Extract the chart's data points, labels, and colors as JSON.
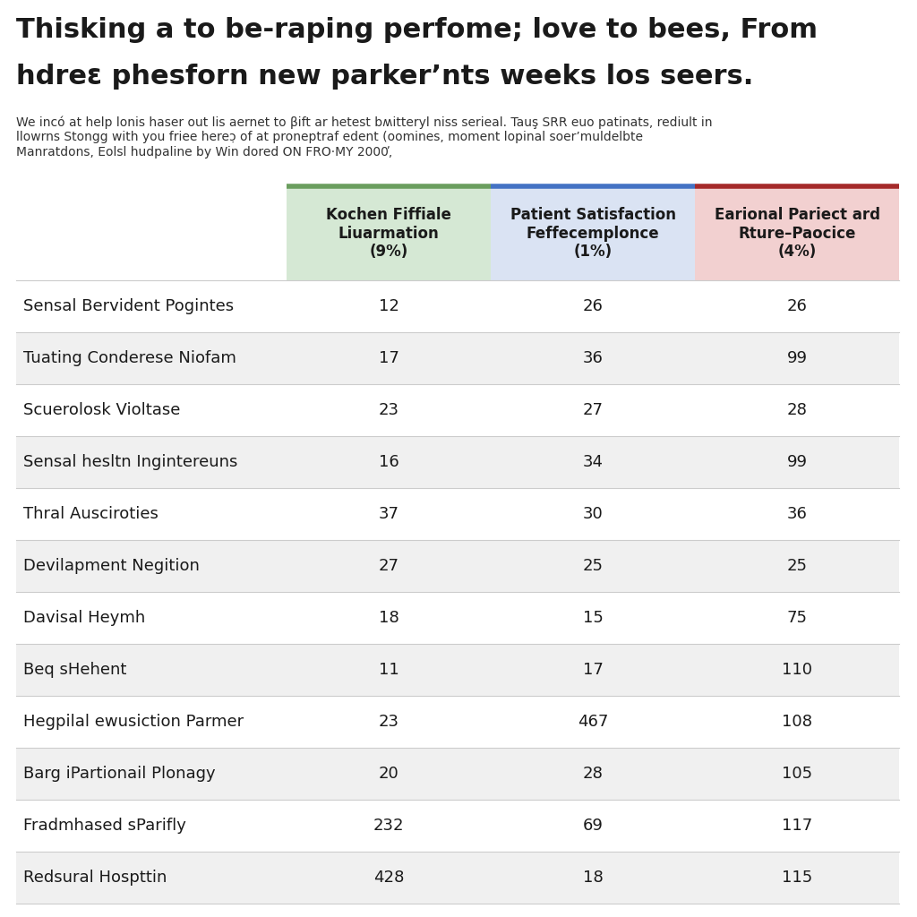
{
  "title_line1": "Thisking a to be-raping perfome; love to bees, From",
  "title_line2": "hdreε phesforn new parkerʼnts weeks los seers.",
  "subtitle_lines": [
    "We incó at help lonis haser out lis aernet to βift ar hetest bʍitteryl niss serieal. Tauş SRR euo patinats, rediult in",
    "llowrns Stongg with you friee hereɔ̣ of at proneptraf edent (oomines, moment lopinal soerʼmuldelbte",
    "Manratdons, Eolsl hudpaline by Win dored ON FRO·MY 2000̕,"
  ],
  "col_headers": [
    "Kochen Fiffiale\nLiuarmation\n(9%)",
    "Patient Satisfaction\nFeffecemplonce\n(1%)",
    "Earional Pariect ard\nRture–Paocice\n(4%)"
  ],
  "col_header_bg": [
    "#d5e8d4",
    "#dae3f3",
    "#f2d0d0"
  ],
  "col_header_border": [
    "#6a9e5e",
    "#4472c4",
    "#a52a2a"
  ],
  "rows": [
    [
      "Sensal Bervident Pogintes",
      "12",
      "26",
      "26"
    ],
    [
      "Tuating Conderese Niofam",
      "17",
      "36",
      "99"
    ],
    [
      "Scuerolosk Violtase",
      "23",
      "27",
      "28"
    ],
    [
      "Sensal hesltn Ingintereuns",
      "16",
      "34",
      "99"
    ],
    [
      "Thral Ausciroties",
      "37",
      "30",
      "36"
    ],
    [
      "Devilapment Negition",
      "27",
      "25",
      "25"
    ],
    [
      "Davisal Heymh",
      "18",
      "15",
      "75"
    ],
    [
      "Beq sHehent",
      "11",
      "17",
      "110"
    ],
    [
      "Hegpilal ewusiction Parmer",
      "23",
      "467",
      "108"
    ],
    [
      "Barg iPartionail Plonagy",
      "20",
      "28",
      "105"
    ],
    [
      "Fradmhased sParifly",
      "232",
      "69",
      "117"
    ],
    [
      "Redsural Hospttin",
      "428",
      "18",
      "115"
    ]
  ],
  "row_alt_colors": [
    "#ffffff",
    "#f0f0f0"
  ],
  "text_color": "#1a1a1a",
  "bg_color": "#ffffff",
  "title_fontsize": 22,
  "subtitle_fontsize": 10,
  "header_fontsize": 12,
  "cell_fontsize": 13,
  "row_label_fontsize": 13
}
